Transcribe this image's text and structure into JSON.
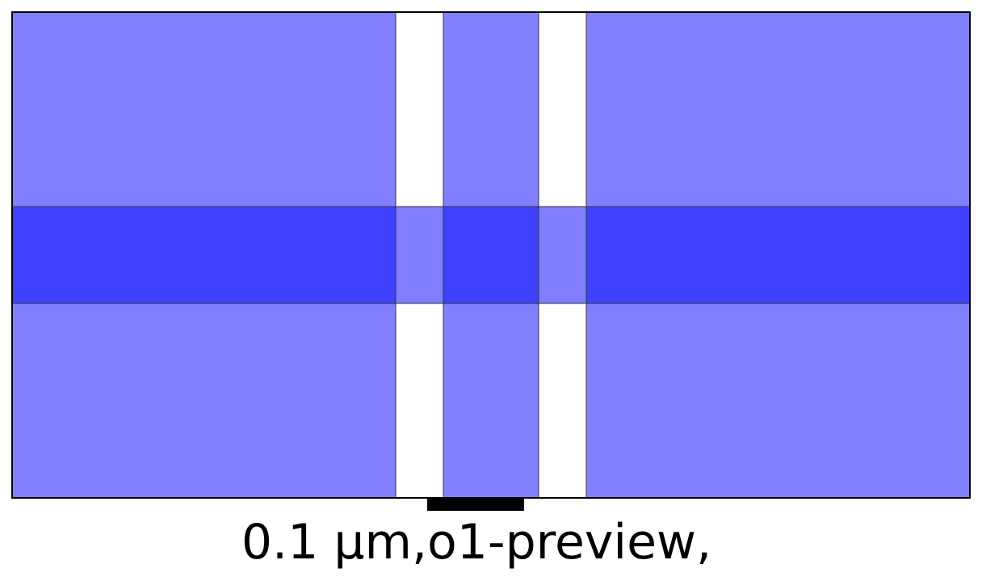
{
  "caption": "0.1 µm,o1-preview,",
  "colors": {
    "region_fill": "#8080ff",
    "overlap_fill": "#4040ff",
    "outline": "#000000",
    "background": "#ffffff",
    "scale_bar": "#000000"
  },
  "layout": {
    "horizontal_band_opacity": 0.5,
    "vertical_region_opacity": 0.5
  }
}
